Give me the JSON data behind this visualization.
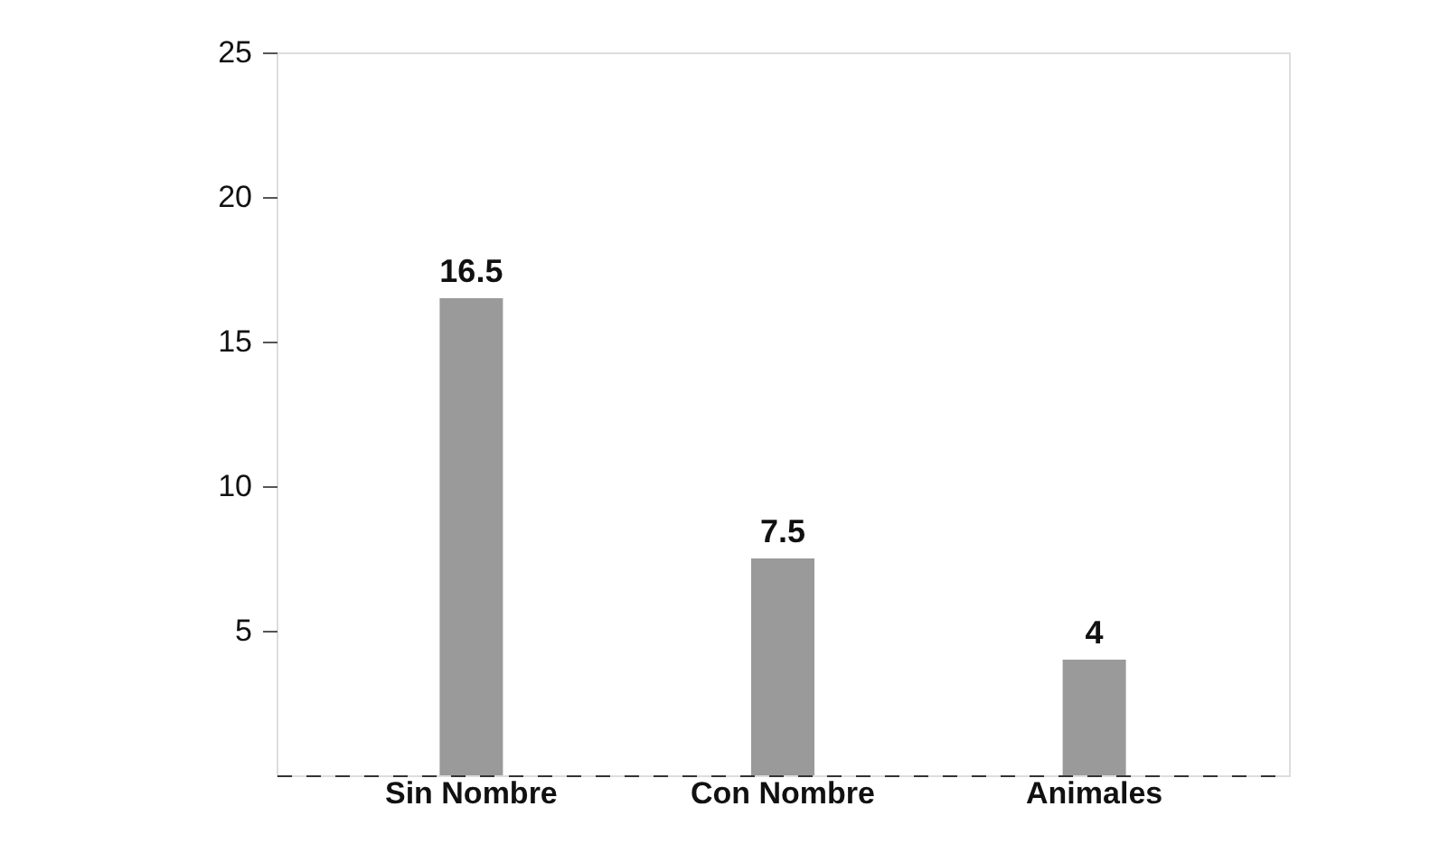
{
  "chart_data": {
    "type": "bar",
    "categories": [
      "Sin Nombre",
      "Con Nombre",
      "Animales"
    ],
    "values": [
      16.5,
      7.5,
      4
    ],
    "color": "#9a9a9a",
    "ylim": [
      0,
      25
    ],
    "yticks": [
      5,
      10,
      15,
      20,
      25
    ],
    "grid": false,
    "data_labels": true
  }
}
